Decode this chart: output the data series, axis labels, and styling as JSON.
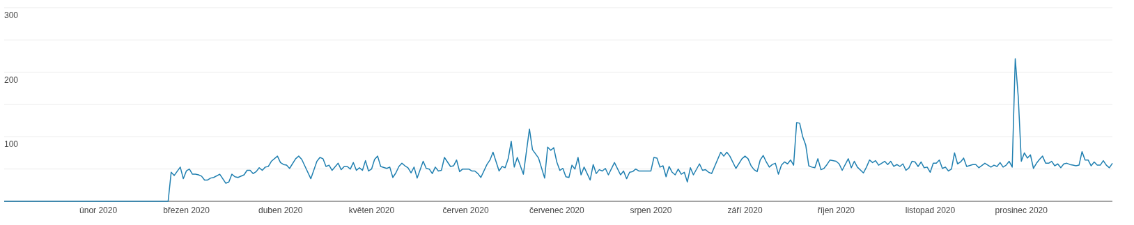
{
  "chart_data": {
    "type": "line",
    "x": [
      "2020-01-01",
      "2020-02-24",
      "2020-02-25",
      "2020-02-26",
      "2020-02-28",
      "2020-02-29",
      "2020-03-01",
      "2020-03-02",
      "2020-03-03",
      "2020-03-04",
      "2020-03-05",
      "2020-03-06",
      "2020-03-07",
      "2020-03-08",
      "2020-03-09",
      "2020-03-10",
      "2020-03-12",
      "2020-03-14",
      "2020-03-15",
      "2020-03-16",
      "2020-03-17",
      "2020-03-18",
      "2020-03-20",
      "2020-03-21",
      "2020-03-22",
      "2020-03-23",
      "2020-03-24",
      "2020-03-25",
      "2020-03-26",
      "2020-03-27",
      "2020-03-28",
      "2020-03-29",
      "2020-03-31",
      "2020-04-01",
      "2020-04-02",
      "2020-04-03",
      "2020-04-04",
      "2020-04-06",
      "2020-04-07",
      "2020-04-08",
      "2020-04-11",
      "2020-04-13",
      "2020-04-14",
      "2020-04-15",
      "2020-04-16",
      "2020-04-17",
      "2020-04-18",
      "2020-04-20",
      "2020-04-21",
      "2020-04-22",
      "2020-04-23",
      "2020-04-24",
      "2020-04-25",
      "2020-04-26",
      "2020-04-27",
      "2020-04-28",
      "2020-04-29",
      "2020-04-30",
      "2020-05-01",
      "2020-05-02",
      "2020-05-03",
      "2020-05-04",
      "2020-05-06",
      "2020-05-07",
      "2020-05-08",
      "2020-05-09",
      "2020-05-10",
      "2020-05-11",
      "2020-05-12",
      "2020-05-13",
      "2020-05-14",
      "2020-05-15",
      "2020-05-16",
      "2020-05-18",
      "2020-05-19",
      "2020-05-20",
      "2020-05-21",
      "2020-05-22",
      "2020-05-23",
      "2020-05-24",
      "2020-05-25",
      "2020-05-27",
      "2020-05-28",
      "2020-05-29",
      "2020-05-30",
      "2020-05-31",
      "2020-06-01",
      "2020-06-02",
      "2020-06-03",
      "2020-06-04",
      "2020-06-05",
      "2020-06-06",
      "2020-06-08",
      "2020-06-09",
      "2020-06-10",
      "2020-06-12",
      "2020-06-13",
      "2020-06-14",
      "2020-06-15",
      "2020-06-16",
      "2020-06-17",
      "2020-06-18",
      "2020-06-20",
      "2020-06-22",
      "2020-06-23",
      "2020-06-25",
      "2020-06-27",
      "2020-06-28",
      "2020-06-29",
      "2020-06-30",
      "2020-07-01",
      "2020-07-02",
      "2020-07-03",
      "2020-07-04",
      "2020-07-05",
      "2020-07-06",
      "2020-07-07",
      "2020-07-08",
      "2020-07-09",
      "2020-07-10",
      "2020-07-12",
      "2020-07-13",
      "2020-07-14",
      "2020-07-15",
      "2020-07-16",
      "2020-07-17",
      "2020-07-18",
      "2020-07-20",
      "2020-07-22",
      "2020-07-23",
      "2020-07-24",
      "2020-07-25",
      "2020-07-26",
      "2020-07-27",
      "2020-07-28",
      "2020-07-29",
      "2020-08-01",
      "2020-08-02",
      "2020-08-03",
      "2020-08-04",
      "2020-08-05",
      "2020-08-06",
      "2020-08-07",
      "2020-08-08",
      "2020-08-09",
      "2020-08-10",
      "2020-08-11",
      "2020-08-12",
      "2020-08-13",
      "2020-08-14",
      "2020-08-15",
      "2020-08-17",
      "2020-08-18",
      "2020-08-19",
      "2020-08-20",
      "2020-08-21",
      "2020-08-24",
      "2020-08-25",
      "2020-08-26",
      "2020-08-27",
      "2020-08-29",
      "2020-08-31",
      "2020-09-01",
      "2020-09-02",
      "2020-09-03",
      "2020-09-04",
      "2020-09-05",
      "2020-09-06",
      "2020-09-07",
      "2020-09-08",
      "2020-09-09",
      "2020-09-10",
      "2020-09-11",
      "2020-09-12",
      "2020-09-13",
      "2020-09-14",
      "2020-09-15",
      "2020-09-16",
      "2020-09-17",
      "2020-09-18",
      "2020-09-19",
      "2020-09-20",
      "2020-09-21",
      "2020-09-22",
      "2020-09-23",
      "2020-09-24",
      "2020-09-25",
      "2020-09-26",
      "2020-09-27",
      "2020-09-28",
      "2020-09-29",
      "2020-10-01",
      "2020-10-02",
      "2020-10-03",
      "2020-10-05",
      "2020-10-06",
      "2020-10-07",
      "2020-10-08",
      "2020-10-10",
      "2020-10-11",
      "2020-10-12",
      "2020-10-13",
      "2020-10-14",
      "2020-10-15",
      "2020-10-17",
      "2020-10-18",
      "2020-10-19",
      "2020-10-20",
      "2020-10-21",
      "2020-10-22",
      "2020-10-23",
      "2020-10-24",
      "2020-10-25",
      "2020-10-26",
      "2020-10-27",
      "2020-10-28",
      "2020-10-29",
      "2020-10-30",
      "2020-10-31",
      "2020-11-01",
      "2020-11-02",
      "2020-11-03",
      "2020-11-04",
      "2020-11-05",
      "2020-11-06",
      "2020-11-07",
      "2020-11-08",
      "2020-11-09",
      "2020-11-10",
      "2020-11-11",
      "2020-11-12",
      "2020-11-13",
      "2020-11-15",
      "2020-11-16",
      "2020-11-17",
      "2020-11-19",
      "2020-11-20",
      "2020-11-21",
      "2020-11-22",
      "2020-11-23",
      "2020-11-24",
      "2020-11-25",
      "2020-11-26",
      "2020-11-27",
      "2020-11-28",
      "2020-11-29",
      "2020-11-30",
      "2020-12-01",
      "2020-12-02",
      "2020-12-03",
      "2020-12-04",
      "2020-12-05",
      "2020-12-06",
      "2020-12-07",
      "2020-12-08",
      "2020-12-09",
      "2020-12-10",
      "2020-12-11",
      "2020-12-12",
      "2020-12-13",
      "2020-12-14",
      "2020-12-15",
      "2020-12-16",
      "2020-12-17",
      "2020-12-18",
      "2020-12-19",
      "2020-12-20",
      "2020-12-21",
      "2020-12-22",
      "2020-12-23",
      "2020-12-24",
      "2020-12-25",
      "2020-12-26",
      "2020-12-27",
      "2020-12-28",
      "2020-12-29",
      "2020-12-30",
      "2020-12-31"
    ],
    "series": [
      {
        "color": "#1f7fb0",
        "values": [
          0,
          0,
          45,
          40,
          53,
          35,
          47,
          50,
          42,
          42,
          41,
          39,
          33,
          33,
          36,
          37,
          42,
          28,
          30,
          42,
          38,
          37,
          41,
          48,
          48,
          43,
          46,
          52,
          48,
          53,
          54,
          62,
          70,
          60,
          57,
          56,
          51,
          66,
          70,
          65,
          35,
          62,
          68,
          66,
          54,
          56,
          48,
          59,
          49,
          54,
          54,
          50,
          60,
          48,
          52,
          48,
          63,
          47,
          50,
          65,
          70,
          54,
          51,
          53,
          37,
          44,
          54,
          59,
          55,
          52,
          44,
          53,
          36,
          62,
          51,
          50,
          43,
          53,
          47,
          48,
          68,
          54,
          55,
          64,
          46,
          50,
          50,
          50,
          47,
          47,
          43,
          37,
          57,
          64,
          76,
          47,
          54,
          52,
          66,
          93,
          53,
          68,
          42,
          112,
          80,
          67,
          36,
          84,
          79,
          83,
          61,
          48,
          51,
          38,
          37,
          56,
          50,
          68,
          41,
          53,
          33,
          57,
          43,
          49,
          47,
          51,
          41,
          60,
          41,
          47,
          35,
          45,
          46,
          50,
          47,
          47,
          47,
          68,
          67,
          53,
          55,
          38,
          54,
          45,
          41,
          50,
          42,
          45,
          30,
          52,
          41,
          58,
          48,
          49,
          45,
          43,
          76,
          70,
          76,
          70,
          51,
          66,
          70,
          66,
          55,
          49,
          46,
          64,
          71,
          61,
          53,
          57,
          59,
          42,
          56,
          61,
          58,
          64,
          56,
          122,
          121,
          100,
          87,
          55,
          53,
          52,
          66,
          49,
          51,
          57,
          64,
          62,
          58,
          48,
          66,
          52,
          62,
          53,
          44,
          53,
          64,
          60,
          63,
          56,
          62,
          57,
          62,
          54,
          57,
          54,
          58,
          48,
          52,
          62,
          61,
          54,
          61,
          52,
          53,
          45,
          59,
          59,
          64,
          51,
          53,
          47,
          50,
          75,
          58,
          61,
          67,
          54,
          57,
          57,
          52,
          59,
          56,
          53,
          56,
          54,
          60,
          53,
          56,
          62,
          53,
          221,
          161,
          62,
          75,
          67,
          72,
          51,
          59,
          65,
          70,
          59,
          59,
          62,
          55,
          58,
          52,
          58,
          59,
          57,
          56,
          55,
          56,
          77,
          64,
          64,
          55,
          61,
          56,
          56,
          63,
          56,
          52,
          59
        ]
      }
    ],
    "xlim": [
      "2020-01-01",
      "2020-12-31"
    ],
    "xticks": [
      {
        "value": "2020-02-01",
        "label": "únor 2020"
      },
      {
        "value": "2020-03-01",
        "label": "březen 2020"
      },
      {
        "value": "2020-04-01",
        "label": "duben 2020"
      },
      {
        "value": "2020-05-01",
        "label": "květen 2020"
      },
      {
        "value": "2020-06-01",
        "label": "červen 2020"
      },
      {
        "value": "2020-07-01",
        "label": "červenec 2020"
      },
      {
        "value": "2020-08-01",
        "label": "srpen 2020"
      },
      {
        "value": "2020-09-01",
        "label": "září 2020"
      },
      {
        "value": "2020-10-01",
        "label": "říjen 2020"
      },
      {
        "value": "2020-11-01",
        "label": "listopad 2020"
      },
      {
        "value": "2020-12-01",
        "label": "prosinec 2020"
      }
    ],
    "ylim": [
      0,
      300
    ],
    "yticks": [
      {
        "value": 0,
        "label": null
      },
      {
        "value": 50,
        "label": null
      },
      100,
      {
        "value": 150,
        "label": null
      },
      200,
      {
        "value": 250,
        "label": null
      },
      300
    ],
    "grid": "y"
  }
}
